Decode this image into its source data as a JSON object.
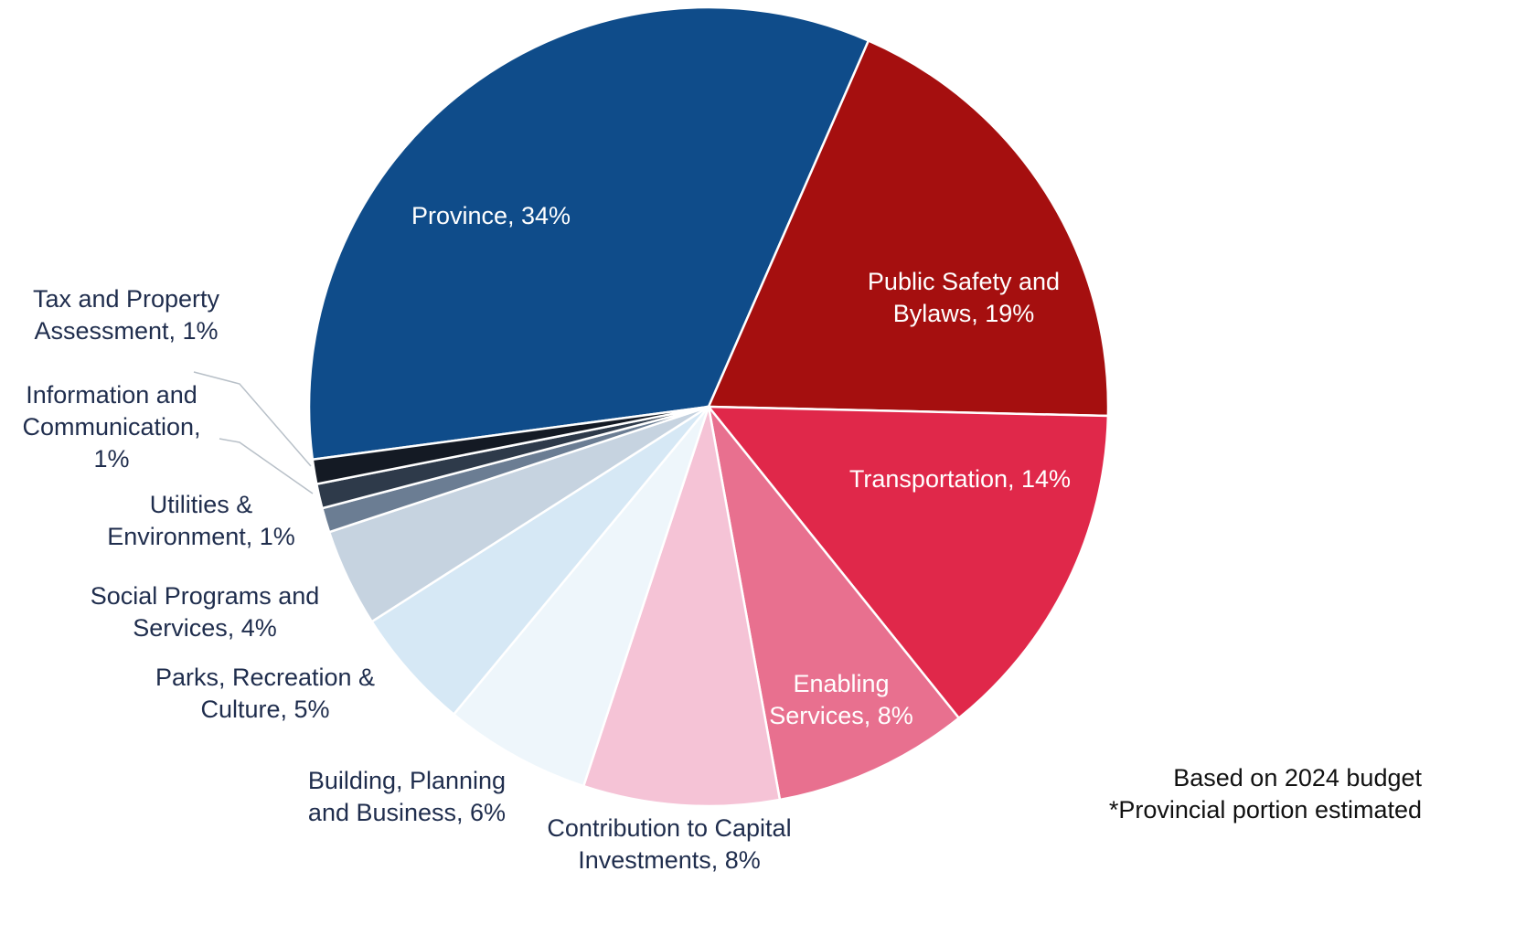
{
  "chart_data": {
    "type": "pie",
    "values": [
      34,
      19,
      14,
      8,
      8,
      6,
      5,
      4,
      1,
      1,
      1
    ],
    "value_labels": [
      [
        "Province, 34%"
      ],
      [
        "Public Safety and",
        "Bylaws, 19%"
      ],
      [
        "Transportation, 14%"
      ],
      [
        "Enabling",
        "Services, 8%"
      ],
      [
        "Contribution to Capital",
        "Investments, 8%"
      ],
      [
        "Building, Planning",
        "and Business, 6%"
      ],
      [
        "Parks, Recreation &",
        "Culture, 5%"
      ],
      [
        "Social Programs and",
        "Services, 4%"
      ],
      [
        "Utilities &",
        "Environment, 1%"
      ],
      [
        "Information and",
        "Communication,",
        "1%"
      ],
      [
        "Tax and Property",
        "Assessment, 1%"
      ]
    ],
    "colors": [
      "#0f4c8a",
      "#a50f0f",
      "#e0284a",
      "#e8708f",
      "#f5c3d6",
      "#eef6fb",
      "#d6e8f5",
      "#c6d3e0",
      "#6b7d93",
      "#2e3a4a",
      "#141a24"
    ],
    "annotations": [
      "Based on 2024 budget",
      "*Provincial portion estimated"
    ]
  }
}
